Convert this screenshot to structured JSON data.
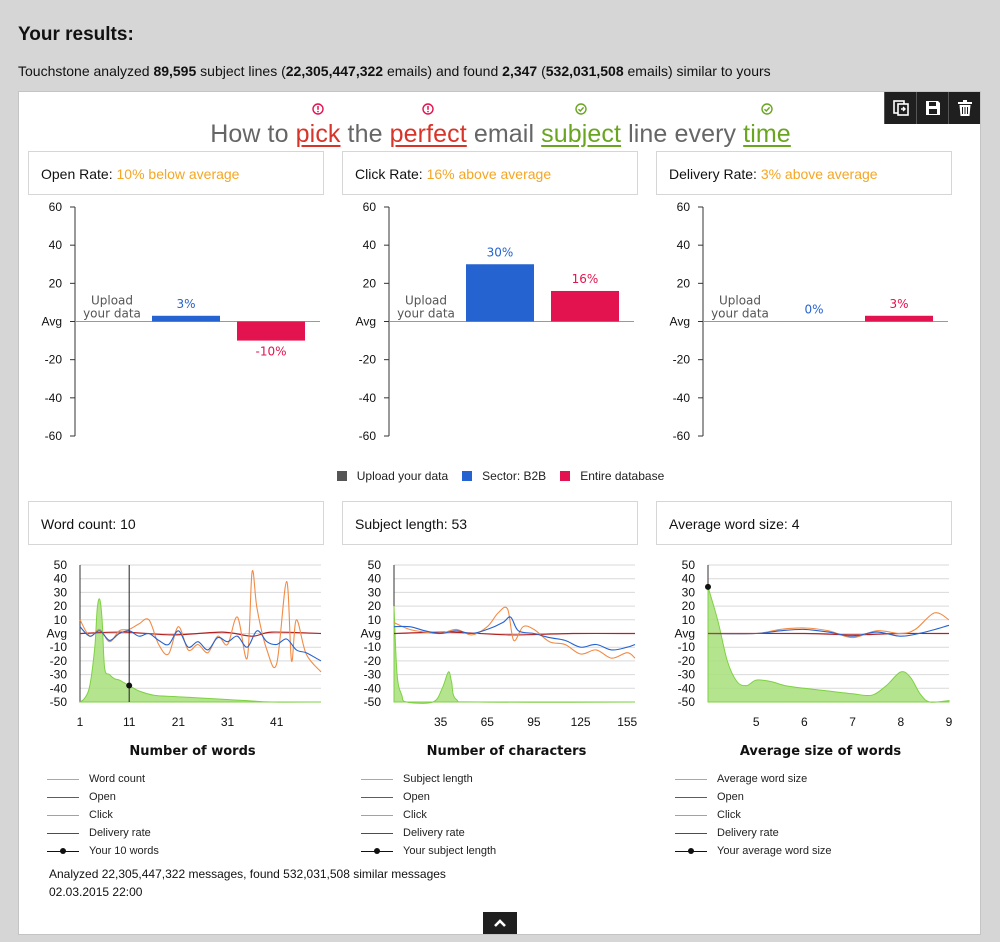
{
  "header": {
    "title": "Your results:",
    "summary": {
      "prefix": "Touchstone analyzed ",
      "lines": "89,595",
      "mid1": " subject lines (",
      "emails": "22,305,447,322",
      "mid2": " emails) and found ",
      "similar": "2,347",
      "mid3": " (",
      "similar_emails": "532,031,508",
      "suffix": " emails) similar to yours"
    }
  },
  "toolbar": {
    "icons": [
      "export-icon",
      "save-icon",
      "trash-icon"
    ]
  },
  "headline": {
    "words": [
      {
        "text": "How to ",
        "style": "plain"
      },
      {
        "text": "pick",
        "style": "bad"
      },
      {
        "text": " the ",
        "style": "plain"
      },
      {
        "text": "perfect",
        "style": "bad"
      },
      {
        "text": " email ",
        "style": "plain"
      },
      {
        "text": "subject",
        "style": "good"
      },
      {
        "text": " line every ",
        "style": "plain"
      },
      {
        "text": "time",
        "style": "good"
      }
    ]
  },
  "colors": {
    "upload": "#555555",
    "sector": "#2563d1",
    "database": "#e2134f",
    "wordcount": "#7ed142",
    "open": "#2563d1",
    "click": "#f28b45",
    "delivery": "#b22222",
    "warning": "#f5a623",
    "bad": "#d8352a",
    "good": "#6aa521"
  },
  "rate_cards": [
    {
      "label": "Open Rate: ",
      "value": "10% below average"
    },
    {
      "label": "Click Rate: ",
      "value": "16% above average"
    },
    {
      "label": "Delivery Rate: ",
      "value": "3% above average"
    }
  ],
  "legend": [
    "Upload your data",
    "Sector: B2B",
    "Entire database"
  ],
  "metric_cards": [
    {
      "label": "Word count: ",
      "value": "10"
    },
    {
      "label": "Subject length: ",
      "value": "53"
    },
    {
      "label": "Average word size: ",
      "value": "4"
    }
  ],
  "line_legends": [
    [
      "Word count",
      "Open",
      "Click",
      "Delivery rate",
      "Your 10 words"
    ],
    [
      "Subject length",
      "Open",
      "Click",
      "Delivery rate",
      "Your subject length"
    ],
    [
      "Average word size",
      "Open",
      "Click",
      "Delivery rate",
      "Your average word size"
    ]
  ],
  "footer": {
    "line1": "Analyzed 22,305,447,322 messages, found 532,031,508 similar messages",
    "line2": "02.03.2015 22:00"
  },
  "chart_data": [
    {
      "type": "bar",
      "yticks": [
        "60",
        "40",
        "20",
        "Avg",
        "-20",
        "-40",
        "-60"
      ],
      "ylim": [
        -60,
        60
      ],
      "placeholder": [
        "Upload",
        "your data"
      ],
      "series": [
        {
          "name": "Sector: B2B",
          "value": 3,
          "label": "3%"
        },
        {
          "name": "Entire database",
          "value": -10,
          "label": "-10%"
        }
      ]
    },
    {
      "type": "bar",
      "yticks": [
        "60",
        "40",
        "20",
        "Avg",
        "-20",
        "-40",
        "-60"
      ],
      "ylim": [
        -60,
        60
      ],
      "placeholder": [
        "Upload",
        "your data"
      ],
      "series": [
        {
          "name": "Sector: B2B",
          "value": 30,
          "label": "30%"
        },
        {
          "name": "Entire database",
          "value": 16,
          "label": "16%"
        }
      ]
    },
    {
      "type": "bar",
      "yticks": [
        "60",
        "40",
        "20",
        "Avg",
        "-20",
        "-40",
        "-60"
      ],
      "ylim": [
        -60,
        60
      ],
      "placeholder": [
        "Upload",
        "your data"
      ],
      "series": [
        {
          "name": "Sector: B2B",
          "value": 0,
          "label": "0%"
        },
        {
          "name": "Entire database",
          "value": 3,
          "label": "3%"
        }
      ]
    },
    {
      "type": "line",
      "xlabel": "Number of words",
      "xlim": [
        1,
        50
      ],
      "xticks": [
        1,
        11,
        21,
        31,
        41
      ],
      "yticks": [
        "50",
        "40",
        "30",
        "20",
        "10",
        "Avg",
        "-10",
        "-20",
        "-30",
        "-40",
        "-50"
      ],
      "ylim": [
        -50,
        50
      ],
      "marker": {
        "x": 11,
        "y": -38
      },
      "area": [
        [
          1,
          -50
        ],
        [
          2,
          -47
        ],
        [
          3,
          -38
        ],
        [
          4,
          -10
        ],
        [
          4.5,
          18
        ],
        [
          5,
          25
        ],
        [
          5.5,
          10
        ],
        [
          6,
          -25
        ],
        [
          7,
          -30
        ],
        [
          8,
          -33
        ],
        [
          9,
          -34
        ],
        [
          10,
          -36
        ],
        [
          11,
          -38
        ],
        [
          13,
          -42
        ],
        [
          16,
          -45
        ],
        [
          20,
          -46
        ],
        [
          25,
          -47
        ],
        [
          30,
          -48
        ],
        [
          35,
          -49
        ],
        [
          40,
          -50
        ],
        [
          50,
          -50
        ]
      ],
      "open": [
        [
          1,
          5
        ],
        [
          3,
          -2
        ],
        [
          5,
          2
        ],
        [
          7,
          -5
        ],
        [
          9,
          0
        ],
        [
          11,
          2
        ],
        [
          13,
          -2
        ],
        [
          15,
          0
        ],
        [
          17,
          -5
        ],
        [
          19,
          -8
        ],
        [
          21,
          2
        ],
        [
          23,
          -10
        ],
        [
          25,
          -6
        ],
        [
          27,
          -12
        ],
        [
          29,
          -3
        ],
        [
          31,
          -6
        ],
        [
          33,
          -2
        ],
        [
          35,
          -10
        ],
        [
          37,
          2
        ],
        [
          39,
          -6
        ],
        [
          41,
          -8
        ],
        [
          43,
          -4
        ],
        [
          45,
          -12
        ],
        [
          47,
          -14
        ],
        [
          49,
          -18
        ],
        [
          50,
          -20
        ]
      ],
      "click": [
        [
          1,
          10
        ],
        [
          3,
          -2
        ],
        [
          5,
          3
        ],
        [
          7,
          -6
        ],
        [
          9,
          2
        ],
        [
          11,
          3
        ],
        [
          13,
          7
        ],
        [
          15,
          10
        ],
        [
          17,
          -8
        ],
        [
          19,
          -15
        ],
        [
          21,
          5
        ],
        [
          23,
          -12
        ],
        [
          25,
          -8
        ],
        [
          27,
          -14
        ],
        [
          29,
          -2
        ],
        [
          31,
          -8
        ],
        [
          33,
          12
        ],
        [
          35,
          -18
        ],
        [
          36,
          45
        ],
        [
          37,
          18
        ],
        [
          39,
          -12
        ],
        [
          41,
          -22
        ],
        [
          43,
          38
        ],
        [
          44,
          -20
        ],
        [
          45,
          10
        ],
        [
          47,
          -15
        ],
        [
          50,
          -28
        ]
      ],
      "delivery": [
        [
          1,
          0
        ],
        [
          10,
          1
        ],
        [
          20,
          -1
        ],
        [
          30,
          1
        ],
        [
          36,
          -2
        ],
        [
          40,
          1
        ],
        [
          50,
          0
        ]
      ]
    },
    {
      "type": "line",
      "xlabel": "Number of characters",
      "xlim": [
        5,
        160
      ],
      "xticks": [
        35,
        65,
        95,
        125,
        155
      ],
      "yticks": [
        "50",
        "40",
        "30",
        "20",
        "10",
        "Avg",
        "-10",
        "-20",
        "-30",
        "-40",
        "-50"
      ],
      "ylim": [
        -50,
        50
      ],
      "marker": null,
      "area": [
        [
          5,
          20
        ],
        [
          7,
          -30
        ],
        [
          10,
          -45
        ],
        [
          13,
          -50
        ],
        [
          30,
          -50
        ],
        [
          36,
          -40
        ],
        [
          40,
          -28
        ],
        [
          42,
          -35
        ],
        [
          45,
          -48
        ],
        [
          60,
          -50
        ],
        [
          160,
          -50
        ]
      ],
      "open": [
        [
          5,
          5
        ],
        [
          15,
          5
        ],
        [
          25,
          2
        ],
        [
          35,
          0
        ],
        [
          45,
          2
        ],
        [
          55,
          0
        ],
        [
          65,
          3
        ],
        [
          75,
          8
        ],
        [
          80,
          12
        ],
        [
          85,
          2
        ],
        [
          95,
          0
        ],
        [
          105,
          -3
        ],
        [
          115,
          -5
        ],
        [
          125,
          -10
        ],
        [
          135,
          -8
        ],
        [
          145,
          -12
        ],
        [
          155,
          -10
        ],
        [
          160,
          -8
        ]
      ],
      "click": [
        [
          5,
          8
        ],
        [
          15,
          3
        ],
        [
          25,
          1
        ],
        [
          35,
          0
        ],
        [
          45,
          3
        ],
        [
          55,
          -1
        ],
        [
          65,
          5
        ],
        [
          72,
          15
        ],
        [
          78,
          18
        ],
        [
          82,
          -5
        ],
        [
          88,
          5
        ],
        [
          95,
          3
        ],
        [
          105,
          -6
        ],
        [
          115,
          -8
        ],
        [
          125,
          -15
        ],
        [
          135,
          -12
        ],
        [
          145,
          -18
        ],
        [
          155,
          -14
        ],
        [
          160,
          -18
        ]
      ],
      "delivery": [
        [
          5,
          0
        ],
        [
          40,
          1
        ],
        [
          80,
          -1
        ],
        [
          120,
          0
        ],
        [
          160,
          0
        ]
      ]
    },
    {
      "type": "line",
      "xlabel": "Average size of words",
      "xlim": [
        4,
        9
      ],
      "xticks": [
        5,
        6,
        7,
        8,
        9
      ],
      "yticks": [
        "50",
        "40",
        "30",
        "20",
        "10",
        "Avg",
        "-10",
        "-20",
        "-30",
        "-40",
        "-50"
      ],
      "ylim": [
        -50,
        50
      ],
      "marker": {
        "x": 4,
        "y": 34
      },
      "area": [
        [
          4,
          34
        ],
        [
          4.2,
          10
        ],
        [
          4.4,
          -20
        ],
        [
          4.6,
          -35
        ],
        [
          4.8,
          -38
        ],
        [
          5,
          -34
        ],
        [
          5.3,
          -35
        ],
        [
          5.6,
          -38
        ],
        [
          6,
          -40
        ],
        [
          6.5,
          -42
        ],
        [
          7,
          -44
        ],
        [
          7.4,
          -45
        ],
        [
          7.7,
          -38
        ],
        [
          8,
          -28
        ],
        [
          8.2,
          -32
        ],
        [
          8.4,
          -44
        ],
        [
          8.6,
          -50
        ],
        [
          9,
          -49
        ]
      ],
      "open": [
        [
          4,
          0
        ],
        [
          5,
          0
        ],
        [
          5.5,
          2
        ],
        [
          6,
          3
        ],
        [
          6.5,
          1
        ],
        [
          7,
          -2
        ],
        [
          7.5,
          1
        ],
        [
          8,
          -2
        ],
        [
          8.5,
          1
        ],
        [
          9,
          6
        ]
      ],
      "click": [
        [
          4,
          0
        ],
        [
          5,
          0
        ],
        [
          5.5,
          3
        ],
        [
          6,
          4
        ],
        [
          6.5,
          2
        ],
        [
          7,
          -3
        ],
        [
          7.5,
          2
        ],
        [
          8,
          0
        ],
        [
          8.3,
          3
        ],
        [
          8.7,
          15
        ],
        [
          9,
          10
        ]
      ],
      "delivery": [
        [
          4,
          0
        ],
        [
          6,
          0
        ],
        [
          7,
          -1
        ],
        [
          8,
          0
        ],
        [
          9,
          0
        ]
      ]
    }
  ]
}
